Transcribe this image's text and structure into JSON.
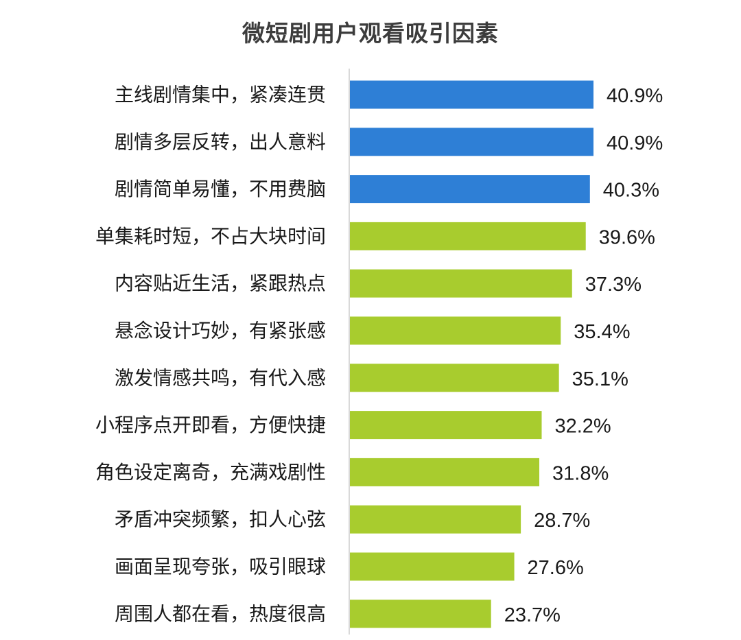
{
  "chart_data": {
    "type": "bar",
    "orientation": "horizontal",
    "title": "微短剧用户观看吸引因素",
    "categories": [
      "主线剧情集中，紧凑连贯",
      "剧情多层反转，出人意料",
      "剧情简单易懂，不用费脑",
      "单集耗时短，不占大块时间",
      "内容贴近生活，紧跟热点",
      "悬念设计巧妙，有紧张感",
      "激发情感共鸣，有代入感",
      "小程序点开即看，方便快捷",
      "角色设定离奇，充满戏剧性",
      "矛盾冲突频繁，扣人心弦",
      "画面呈现夸张，吸引眼球",
      "周围人都在看，热度很高"
    ],
    "values": [
      40.9,
      40.9,
      40.3,
      39.6,
      37.3,
      35.4,
      35.1,
      32.2,
      31.8,
      28.7,
      27.6,
      23.7
    ],
    "value_labels": [
      "40.9%",
      "40.9%",
      "40.3%",
      "39.6%",
      "37.3%",
      "35.4%",
      "35.1%",
      "32.2%",
      "31.8%",
      "28.7%",
      "27.6%",
      "23.7%"
    ],
    "highlight_count": 3,
    "colors": {
      "highlight": "#2e7fd6",
      "default": "#a8cc2e",
      "axis": "#d9d9d9"
    },
    "xlim": [
      0,
      40.9
    ],
    "grid": false,
    "legend": "none"
  }
}
